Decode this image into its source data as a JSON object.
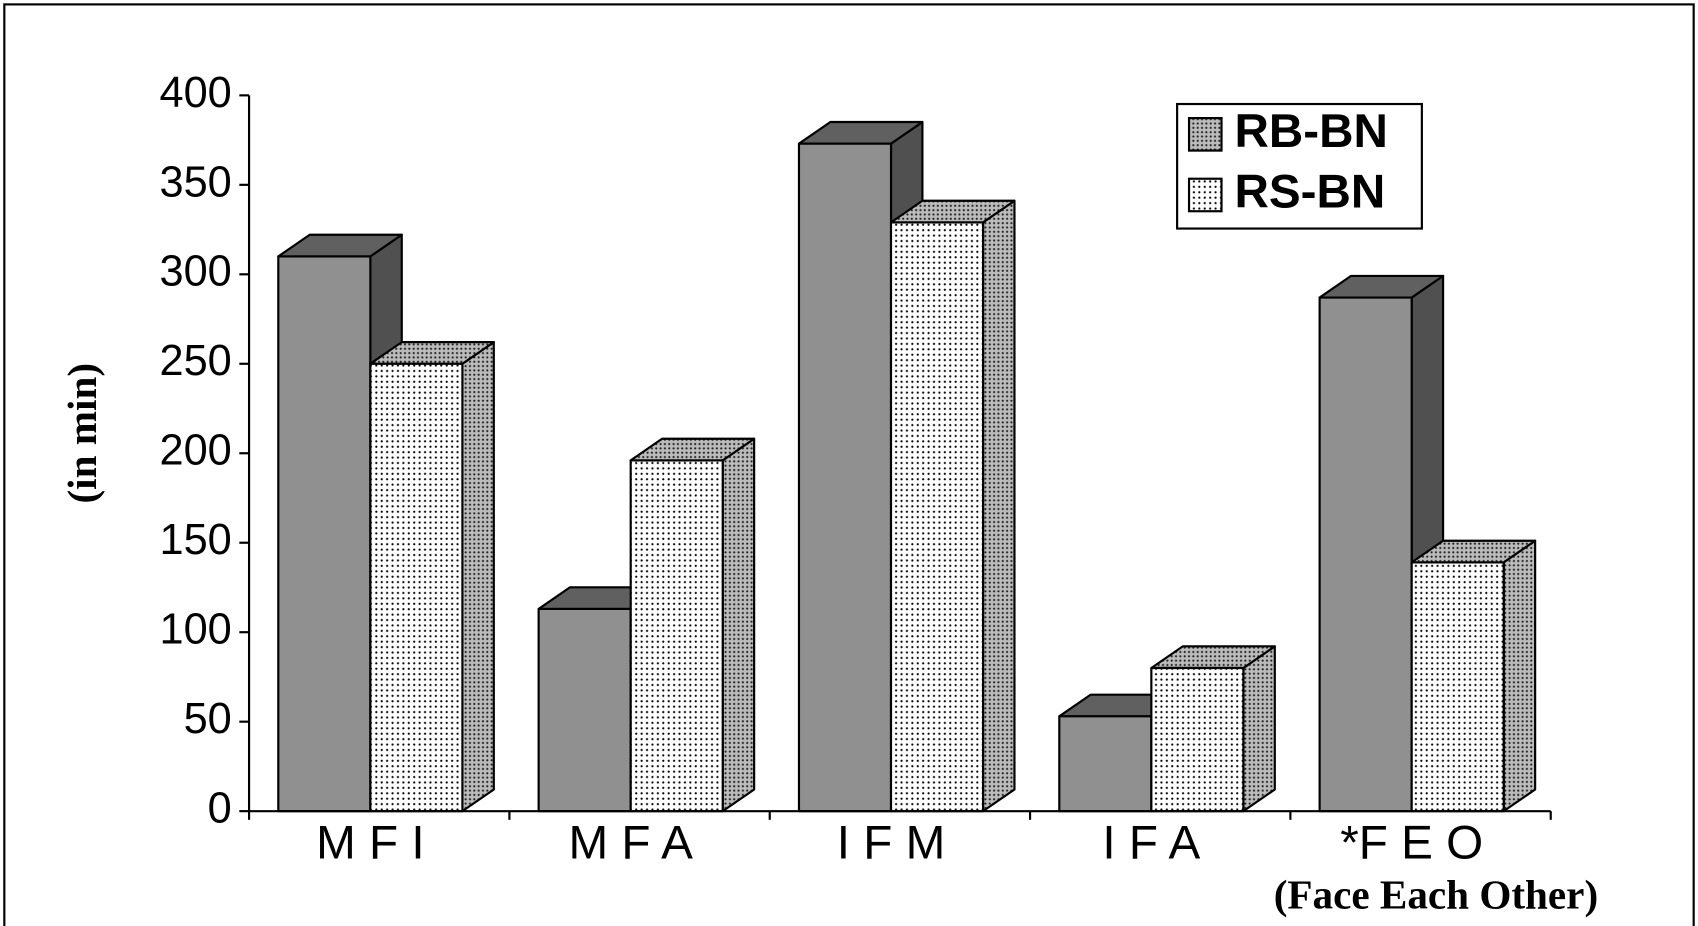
{
  "chart_data": {
    "type": "bar3d",
    "y_label": "(in min)",
    "annotation": "(Face Each Other)",
    "categories": [
      "M F I",
      "M F A",
      "I F M",
      "I F A",
      "*F E O"
    ],
    "series": [
      {
        "name": "RB-BN",
        "color": "#909090",
        "values": [
          310,
          113,
          373,
          53,
          287
        ]
      },
      {
        "name": "RS-BN",
        "color": "#ffffff",
        "values": [
          250,
          196,
          329,
          80,
          139
        ]
      }
    ],
    "ylim": [
      0,
      400
    ],
    "yticks": [
      0,
      50,
      100,
      150,
      200,
      250,
      300,
      350,
      400
    ],
    "legend": "top-right"
  }
}
